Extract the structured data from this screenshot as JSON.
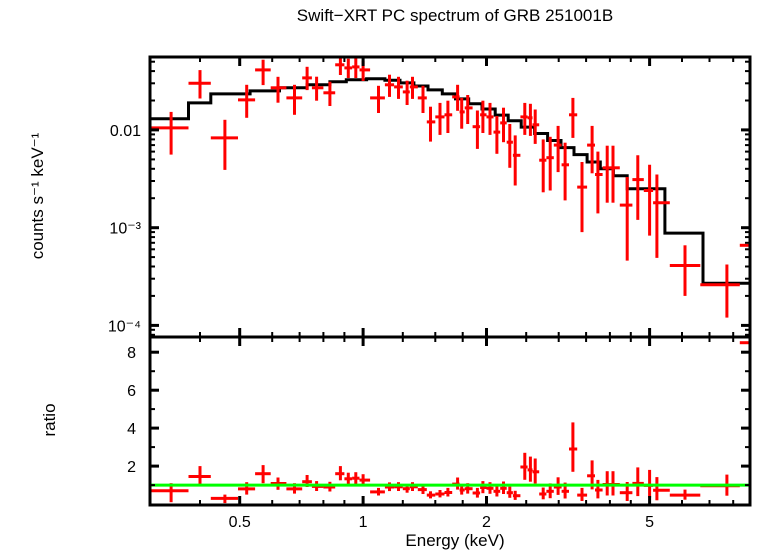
{
  "title": "Swift−XRT PC spectrum of GRB 251001B",
  "labels": {
    "xlabel": "Energy (keV)",
    "y1label": "counts s⁻¹ keV⁻¹",
    "y2label": "ratio"
  },
  "colors": {
    "data": "#ff0000",
    "model": "#000000",
    "unity_line": "#00ff00",
    "axis": "#000000",
    "background": "#ffffff"
  },
  "chart_data": [
    {
      "type": "scatter",
      "name": "spectrum-panel",
      "ylabel": "counts s⁻¹ keV⁻¹",
      "xscale": "log",
      "yscale": "log",
      "xlim": [
        0.302,
        8.79
      ],
      "ylim": [
        7.6e-05,
        0.0558
      ],
      "grid": false,
      "x_major_ticks": [
        0.5,
        1,
        2,
        5
      ],
      "x_tick_labels": [
        "0.5",
        "1",
        "2",
        "5"
      ],
      "x_minor_ticks": [
        0.4,
        0.6,
        0.7,
        0.8,
        0.9,
        1.25,
        1.5,
        1.75,
        2.5,
        3,
        3.5,
        4,
        4.5,
        6,
        7,
        8
      ],
      "y_major_ticks": [
        0.01,
        0.001,
        0.0001
      ],
      "y_tick_labels": [
        "0.01",
        "10⁻³",
        "10⁻⁴"
      ],
      "y_minor_ticks": [
        8e-05,
        9e-05,
        0.0002,
        0.0003,
        0.0004,
        0.0005,
        0.0006,
        0.0007,
        0.0008,
        0.0009,
        0.002,
        0.003,
        0.004,
        0.005,
        0.006,
        0.007,
        0.008,
        0.009,
        0.02,
        0.03,
        0.04,
        0.05
      ],
      "points_format": [
        "e_lo",
        "e",
        "e_hi",
        "c_lo",
        "c",
        "c_hi"
      ],
      "points": [
        [
          0.302,
          0.34,
          0.375,
          0.0056,
          0.0105,
          0.0153
        ],
        [
          0.375,
          0.4,
          0.425,
          0.021,
          0.03,
          0.041
        ],
        [
          0.425,
          0.46,
          0.495,
          0.0039,
          0.0083,
          0.0127
        ],
        [
          0.495,
          0.52,
          0.545,
          0.0133,
          0.0203,
          0.029
        ],
        [
          0.545,
          0.57,
          0.595,
          0.0288,
          0.0412,
          0.0523
        ],
        [
          0.595,
          0.62,
          0.65,
          0.019,
          0.027,
          0.035
        ],
        [
          0.65,
          0.68,
          0.71,
          0.0143,
          0.0213,
          0.029
        ],
        [
          0.71,
          0.73,
          0.75,
          0.0256,
          0.0341,
          0.0443
        ],
        [
          0.75,
          0.77,
          0.8,
          0.0199,
          0.027,
          0.0351
        ],
        [
          0.8,
          0.83,
          0.855,
          0.0176,
          0.024,
          0.0312
        ],
        [
          0.855,
          0.88,
          0.9,
          0.0365,
          0.0464,
          0.0575
        ],
        [
          0.9,
          0.92,
          0.94,
          0.034,
          0.0432,
          0.0536
        ],
        [
          0.94,
          0.96,
          0.98,
          0.034,
          0.0442,
          0.0548
        ],
        [
          0.98,
          1.0,
          1.04,
          0.0317,
          0.0412,
          0.0511
        ],
        [
          1.04,
          1.09,
          1.13,
          0.0149,
          0.0213,
          0.0283
        ],
        [
          1.13,
          1.16,
          1.19,
          0.0218,
          0.029,
          0.0368
        ],
        [
          1.19,
          1.22,
          1.25,
          0.0208,
          0.0276,
          0.035
        ],
        [
          1.25,
          1.28,
          1.3,
          0.018,
          0.0245,
          0.0319
        ],
        [
          1.3,
          1.32,
          1.36,
          0.0208,
          0.0276,
          0.035
        ],
        [
          1.36,
          1.4,
          1.43,
          0.0149,
          0.0213,
          0.0283
        ],
        [
          1.43,
          1.46,
          1.5,
          0.0076,
          0.0121,
          0.0173
        ],
        [
          1.5,
          1.54,
          1.58,
          0.0089,
          0.0136,
          0.0189
        ],
        [
          1.58,
          1.61,
          1.65,
          0.0093,
          0.0143,
          0.0199
        ],
        [
          1.65,
          1.7,
          1.72,
          0.0157,
          0.0218,
          0.029
        ],
        [
          1.72,
          1.74,
          1.77,
          0.0103,
          0.0153,
          0.0213
        ],
        [
          1.77,
          1.8,
          1.85,
          0.0115,
          0.0168,
          0.0228
        ],
        [
          1.85,
          1.9,
          1.93,
          0.0064,
          0.0108,
          0.0158
        ],
        [
          1.93,
          1.96,
          2.0,
          0.0093,
          0.0143,
          0.0199
        ],
        [
          2.0,
          2.04,
          2.08,
          0.0089,
          0.0136,
          0.0189
        ],
        [
          2.08,
          2.12,
          2.16,
          0.0057,
          0.0095,
          0.0139
        ],
        [
          2.16,
          2.2,
          2.24,
          0.0075,
          0.0118,
          0.0169
        ],
        [
          2.24,
          2.28,
          2.32,
          0.0041,
          0.0075,
          0.0115
        ],
        [
          2.32,
          2.35,
          2.42,
          0.0027,
          0.0055,
          0.0088
        ],
        [
          2.42,
          2.48,
          2.52,
          0.0089,
          0.0136,
          0.0189
        ],
        [
          2.52,
          2.56,
          2.59,
          0.0087,
          0.0133,
          0.0185
        ],
        [
          2.59,
          2.63,
          2.69,
          0.0072,
          0.0113,
          0.0162
        ],
        [
          2.69,
          2.75,
          2.8,
          0.0023,
          0.0049,
          0.008
        ],
        [
          2.8,
          2.86,
          2.92,
          0.0024,
          0.0052,
          0.0085
        ],
        [
          2.92,
          2.99,
          3.05,
          0.0037,
          0.007,
          0.011
        ],
        [
          3.05,
          3.11,
          3.18,
          0.0019,
          0.0044,
          0.0074
        ],
        [
          3.18,
          3.25,
          3.33,
          0.0083,
          0.0143,
          0.0213
        ],
        [
          3.33,
          3.42,
          3.52,
          0.0009,
          0.0026,
          0.0047
        ],
        [
          3.52,
          3.62,
          3.68,
          0.0036,
          0.007,
          0.011
        ],
        [
          3.68,
          3.74,
          3.84,
          0.0014,
          0.0035,
          0.006
        ],
        [
          3.84,
          3.94,
          4.0,
          0.0018,
          0.0041,
          0.0069
        ],
        [
          4.0,
          4.07,
          4.23,
          0.0018,
          0.0041,
          0.0069
        ],
        [
          4.23,
          4.41,
          4.54,
          0.00046,
          0.0017,
          0.0033
        ],
        [
          4.54,
          4.68,
          4.84,
          0.0012,
          0.0031,
          0.0055
        ],
        [
          4.84,
          5.0,
          5.1,
          0.00083,
          0.0024,
          0.0044
        ],
        [
          5.1,
          5.21,
          5.6,
          0.00049,
          0.0018,
          0.0035
        ],
        [
          5.6,
          6.1,
          6.65,
          0.0002,
          0.00041,
          0.00066
        ],
        [
          6.65,
          7.72,
          8.3,
          0.00012,
          0.00026,
          0.00042
        ],
        [
          8.3,
          8.85,
          8.92,
          6e-05,
          0.00066,
          0.0012
        ]
      ],
      "model_steps_format": [
        "e_lo",
        "e_hi",
        "c"
      ],
      "model_steps": [
        [
          0.302,
          0.375,
          0.013
        ],
        [
          0.375,
          0.425,
          0.0189
        ],
        [
          0.425,
          0.53,
          0.0234
        ],
        [
          0.53,
          0.625,
          0.0251
        ],
        [
          0.625,
          0.73,
          0.027
        ],
        [
          0.73,
          0.83,
          0.029
        ],
        [
          0.83,
          0.91,
          0.0311
        ],
        [
          0.91,
          1.02,
          0.0326
        ],
        [
          1.02,
          1.13,
          0.0334
        ],
        [
          1.13,
          1.23,
          0.0322
        ],
        [
          1.23,
          1.33,
          0.0303
        ],
        [
          1.33,
          1.44,
          0.0282
        ],
        [
          1.44,
          1.56,
          0.0257
        ],
        [
          1.56,
          1.68,
          0.0234
        ],
        [
          1.68,
          1.81,
          0.0208
        ],
        [
          1.81,
          1.95,
          0.0185
        ],
        [
          1.95,
          2.1,
          0.0164
        ],
        [
          2.1,
          2.26,
          0.0142
        ],
        [
          2.26,
          2.43,
          0.0124
        ],
        [
          2.43,
          2.62,
          0.0107
        ],
        [
          2.62,
          2.82,
          0.0092
        ],
        [
          2.82,
          3.04,
          0.0078
        ],
        [
          3.04,
          3.27,
          0.0066
        ],
        [
          3.27,
          3.52,
          0.0056
        ],
        [
          3.52,
          3.79,
          0.0047
        ],
        [
          3.79,
          4.08,
          0.004
        ],
        [
          4.08,
          4.41,
          0.0034
        ],
        [
          4.41,
          5.45,
          0.0025
        ],
        [
          5.45,
          6.75,
          0.00088
        ],
        [
          6.75,
          8.79,
          0.00027
        ]
      ]
    },
    {
      "type": "scatter",
      "name": "ratio-panel",
      "ylabel": "ratio",
      "xlabel": "Energy (keV)",
      "xscale": "log",
      "yscale": "linear",
      "xlim": [
        0.302,
        8.79
      ],
      "ylim": [
        -0.05,
        8.8
      ],
      "grid": false,
      "y_major_ticks": [
        2,
        4,
        6,
        8
      ],
      "y_tick_labels": [
        "2",
        "4",
        "6",
        "8"
      ],
      "y_minor_ticks": [
        1,
        3,
        5,
        7
      ],
      "reference_line_y": 1,
      "points_format": [
        "e_lo",
        "e",
        "e_hi",
        "r_lo",
        "r",
        "r_hi"
      ],
      "points": [
        [
          0.302,
          0.34,
          0.375,
          0.1,
          0.7,
          1.1
        ],
        [
          0.375,
          0.4,
          0.425,
          1.0,
          1.45,
          2.0
        ],
        [
          0.425,
          0.46,
          0.495,
          0.05,
          0.3,
          0.5
        ],
        [
          0.495,
          0.52,
          0.545,
          0.5,
          0.8,
          1.15
        ],
        [
          0.545,
          0.57,
          0.595,
          1.1,
          1.6,
          2.05
        ],
        [
          0.595,
          0.62,
          0.65,
          0.75,
          1.08,
          1.4
        ],
        [
          0.65,
          0.68,
          0.71,
          0.55,
          0.8,
          1.1
        ],
        [
          0.71,
          0.73,
          0.75,
          0.9,
          1.18,
          1.53
        ],
        [
          0.75,
          0.77,
          0.8,
          0.69,
          0.93,
          1.21
        ],
        [
          0.8,
          0.83,
          0.855,
          0.66,
          0.9,
          1.17
        ],
        [
          0.855,
          0.88,
          0.9,
          1.25,
          1.6,
          2.0
        ],
        [
          0.9,
          0.92,
          0.94,
          1.05,
          1.33,
          1.65
        ],
        [
          0.94,
          0.96,
          0.98,
          1.05,
          1.36,
          1.68
        ],
        [
          0.98,
          1.0,
          1.04,
          0.97,
          1.26,
          1.57
        ],
        [
          1.04,
          1.09,
          1.13,
          0.45,
          0.64,
          0.85
        ],
        [
          1.13,
          1.16,
          1.19,
          0.68,
          0.9,
          1.14
        ],
        [
          1.19,
          1.22,
          1.25,
          0.69,
          0.91,
          1.15
        ],
        [
          1.25,
          1.28,
          1.3,
          0.6,
          0.81,
          1.05
        ],
        [
          1.3,
          1.32,
          1.36,
          0.69,
          0.91,
          1.15
        ],
        [
          1.36,
          1.4,
          1.43,
          0.53,
          0.76,
          1.01
        ],
        [
          1.43,
          1.46,
          1.5,
          0.3,
          0.47,
          0.67
        ],
        [
          1.5,
          1.54,
          1.58,
          0.35,
          0.53,
          0.74
        ],
        [
          1.58,
          1.61,
          1.65,
          0.4,
          0.61,
          0.85
        ],
        [
          1.65,
          1.7,
          1.72,
          0.76,
          1.05,
          1.4
        ],
        [
          1.72,
          1.74,
          1.77,
          0.5,
          0.74,
          1.03
        ],
        [
          1.77,
          1.8,
          1.85,
          0.55,
          0.81,
          1.1
        ],
        [
          1.85,
          1.9,
          1.93,
          0.34,
          0.58,
          0.85
        ],
        [
          1.93,
          1.96,
          2.0,
          0.57,
          0.87,
          1.21
        ],
        [
          2.0,
          2.04,
          2.08,
          0.54,
          0.83,
          1.15
        ],
        [
          2.08,
          2.12,
          2.16,
          0.4,
          0.67,
          0.98
        ],
        [
          2.16,
          2.2,
          2.24,
          0.53,
          0.83,
          1.19
        ],
        [
          2.24,
          2.28,
          2.32,
          0.33,
          0.6,
          0.92
        ],
        [
          2.32,
          2.35,
          2.42,
          0.22,
          0.44,
          0.7
        ],
        [
          2.42,
          2.48,
          2.52,
          1.28,
          1.95,
          2.7
        ],
        [
          2.52,
          2.56,
          2.59,
          1.18,
          1.8,
          2.5
        ],
        [
          2.59,
          2.63,
          2.69,
          1.08,
          1.7,
          2.4
        ],
        [
          2.69,
          2.75,
          2.8,
          0.25,
          0.53,
          0.87
        ],
        [
          2.8,
          2.86,
          2.92,
          0.31,
          0.67,
          1.09
        ],
        [
          2.92,
          2.99,
          3.05,
          0.48,
          0.9,
          1.41
        ],
        [
          3.05,
          3.11,
          3.18,
          0.29,
          0.67,
          1.13
        ],
        [
          3.18,
          3.25,
          3.33,
          1.7,
          2.9,
          4.3
        ],
        [
          3.33,
          3.42,
          3.52,
          0.16,
          0.47,
          0.85
        ],
        [
          3.52,
          3.62,
          3.68,
          0.77,
          1.49,
          2.3
        ],
        [
          3.68,
          3.74,
          3.84,
          0.3,
          0.74,
          1.27
        ],
        [
          3.84,
          3.94,
          4.0,
          0.45,
          1.03,
          1.73
        ],
        [
          4.0,
          4.07,
          4.23,
          0.45,
          1.03,
          1.73
        ],
        [
          4.23,
          4.41,
          4.54,
          0.16,
          0.6,
          1.16
        ],
        [
          4.54,
          4.68,
          4.84,
          0.42,
          1.09,
          1.93
        ],
        [
          4.84,
          5.0,
          5.1,
          0.34,
          0.98,
          1.8
        ],
        [
          5.1,
          5.21,
          5.6,
          0.2,
          0.73,
          1.42
        ],
        [
          5.6,
          6.1,
          6.65,
          0.23,
          0.47,
          0.76
        ],
        [
          6.65,
          7.72,
          8.3,
          0.44,
          0.96,
          1.55
        ],
        [
          8.3,
          8.85,
          8.92,
          1.9,
          8.5,
          16.0
        ]
      ]
    }
  ]
}
